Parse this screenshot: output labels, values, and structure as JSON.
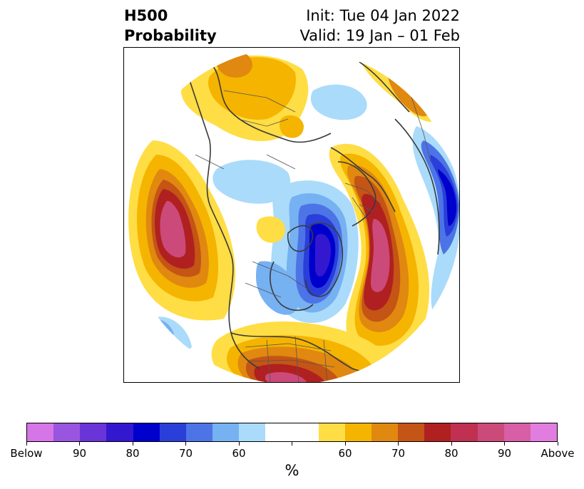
{
  "title": {
    "left_line1": "H500",
    "left_line2": "Probability",
    "right_line1": "Init: Tue 04 Jan 2022",
    "right_line2": "Valid: 19 Jan – 01 Feb"
  },
  "map": {
    "projection": "north-polar-stereographic",
    "description_layers": [
      "coastlines",
      "country-borders",
      "state-borders",
      "filled-probability-contours"
    ]
  },
  "colorbar": {
    "unit_label": "%",
    "tick_labels": [
      "Below",
      "90",
      "80",
      "70",
      "60",
      "",
      "60",
      "70",
      "80",
      "90",
      "Above"
    ],
    "colors": [
      "#d675e8",
      "#9a55e0",
      "#6a35d8",
      "#3418d0",
      "#0000cc",
      "#2a3fd9",
      "#4d74e6",
      "#76b1f2",
      "#aadbfa",
      "#ffffff",
      "#ffdd44",
      "#f5b400",
      "#e08810",
      "#c45515",
      "#b02020",
      "#c03050",
      "#cc4a7a",
      "#d85fa5",
      "#e27de0"
    ]
  }
}
